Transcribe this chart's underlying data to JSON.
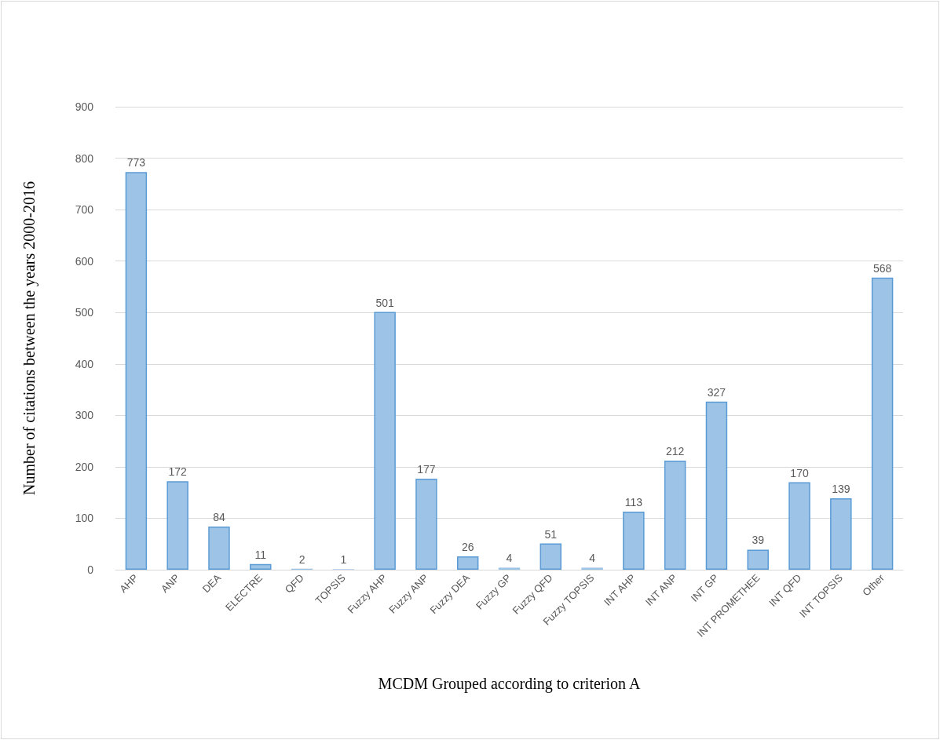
{
  "chart_data": {
    "type": "bar",
    "xlabel": "MCDM Grouped according to criterion A",
    "ylabel": "Number of citations between the years 2000-2016",
    "categories": [
      "AHP",
      "ANP",
      "DEA",
      "ELECTRE",
      "QFD",
      "TOPSIS",
      "Fuzzy AHP",
      "Fuzzy ANP",
      "Fuzzy DEA",
      "Fuzzy GP",
      "Fuzzy QFD",
      "Fuzzy TOPSIS",
      "INT AHP",
      "INT ANP",
      "INT GP",
      "INT PROMETHEE",
      "INT QFD",
      "INT TOPSIS",
      "Other"
    ],
    "values": [
      773,
      172,
      84,
      11,
      2,
      1,
      501,
      177,
      26,
      4,
      51,
      4,
      113,
      212,
      327,
      39,
      170,
      139,
      568
    ],
    "color": "#9dc3e6",
    "ylim": [
      0,
      900
    ],
    "yticks": [
      0,
      100,
      200,
      300,
      400,
      500,
      600,
      700,
      800,
      900
    ],
    "grid": "y",
    "data_labels": true
  }
}
